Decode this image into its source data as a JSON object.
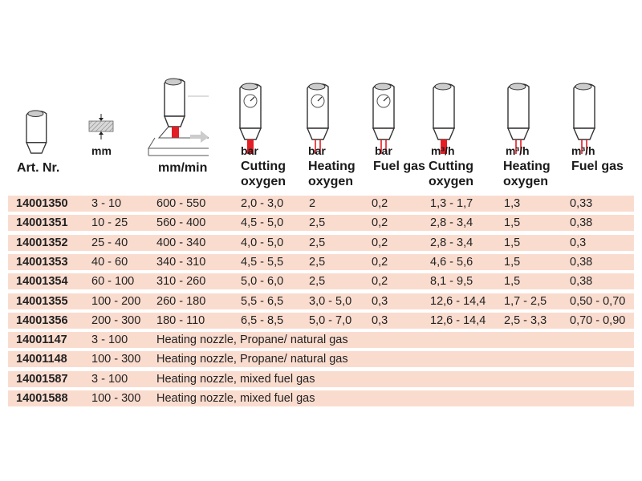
{
  "colors": {
    "row_bg": "#fadccf",
    "accent_red": "#e31e24",
    "text": "#1a1a1a"
  },
  "header": {
    "columns": [
      {
        "key": "art",
        "icon": "nozzle-icon",
        "unit": "",
        "label": "Art. Nr.",
        "label2": ""
      },
      {
        "key": "thickness",
        "icon": "material-thickness-icon",
        "unit": "mm",
        "label": "",
        "label2": ""
      },
      {
        "key": "speed",
        "icon": "cutting-speed-icon",
        "unit": "",
        "label": "mm/min",
        "label2": ""
      },
      {
        "key": "cut_o2_bar",
        "icon": "nozzle-gauge-cutting-icon",
        "unit": "bar",
        "label": "Cutting",
        "label2": "oxygen"
      },
      {
        "key": "heat_o2_bar",
        "icon": "nozzle-gauge-heating-icon",
        "unit": "bar",
        "label": "Heating",
        "label2": "oxygen"
      },
      {
        "key": "fuel_bar",
        "icon": "nozzle-gauge-fuel-icon",
        "unit": "bar",
        "label": "Fuel gas",
        "label2": ""
      },
      {
        "key": "cut_o2_flow",
        "icon": "nozzle-cutting-flow-icon",
        "unit": "m³/h",
        "label": "Cutting",
        "label2": "oxygen"
      },
      {
        "key": "heat_o2_flow",
        "icon": "nozzle-heating-flow-icon",
        "unit": "m³/h",
        "label": "Heating",
        "label2": "oxygen"
      },
      {
        "key": "fuel_flow",
        "icon": "nozzle-fuel-flow-icon",
        "unit": "m³/h",
        "label": "Fuel gas",
        "label2": ""
      }
    ]
  },
  "rows": [
    {
      "art": "14001350",
      "thickness": "3 - 10",
      "speed": "600 - 550",
      "cut_o2_bar": "2,0 - 3,0",
      "heat_o2_bar": "2",
      "fuel_bar": "0,2",
      "cut_o2_flow": "1,3 - 1,7",
      "heat_o2_flow": "1,3",
      "fuel_flow": "0,33"
    },
    {
      "art": "14001351",
      "thickness": "10 - 25",
      "speed": "560 - 400",
      "cut_o2_bar": "4,5 - 5,0",
      "heat_o2_bar": "2,5",
      "fuel_bar": "0,2",
      "cut_o2_flow": "2,8 - 3,4",
      "heat_o2_flow": "1,5",
      "fuel_flow": "0,38"
    },
    {
      "art": "14001352",
      "thickness": "25 - 40",
      "speed": "400 - 340",
      "cut_o2_bar": "4,0 - 5,0",
      "heat_o2_bar": "2,5",
      "fuel_bar": "0,2",
      "cut_o2_flow": "2,8 - 3,4",
      "heat_o2_flow": "1,5",
      "fuel_flow": "0,3"
    },
    {
      "art": "14001353",
      "thickness": "40 - 60",
      "speed": "340 - 310",
      "cut_o2_bar": "4,5 - 5,5",
      "heat_o2_bar": "2,5",
      "fuel_bar": "0,2",
      "cut_o2_flow": "4,6 - 5,6",
      "heat_o2_flow": "1,5",
      "fuel_flow": "0,38"
    },
    {
      "art": "14001354",
      "thickness": "60 - 100",
      "speed": "310 - 260",
      "cut_o2_bar": "5,0 - 6,0",
      "heat_o2_bar": "2,5",
      "fuel_bar": "0,2",
      "cut_o2_flow": "8,1 - 9,5",
      "heat_o2_flow": "1,5",
      "fuel_flow": "0,38"
    },
    {
      "art": "14001355",
      "thickness": "100 - 200",
      "speed": "260 - 180",
      "cut_o2_bar": "5,5 - 6,5",
      "heat_o2_bar": "3,0 - 5,0",
      "fuel_bar": "0,3",
      "cut_o2_flow": "12,6 - 14,4",
      "heat_o2_flow": "1,7 - 2,5",
      "fuel_flow": "0,50 - 0,70"
    },
    {
      "art": "14001356",
      "thickness": "200 - 300",
      "speed": "180 - 110",
      "cut_o2_bar": "6,5 - 8,5",
      "heat_o2_bar": "5,0 - 7,0",
      "fuel_bar": "0,3",
      "cut_o2_flow": "12,6 - 14,4",
      "heat_o2_flow": "2,5 - 3,3",
      "fuel_flow": "0,70 - 0,90"
    },
    {
      "art": "14001147",
      "thickness": "3 - 100",
      "description": "Heating nozzle, Propane/ natural gas"
    },
    {
      "art": "14001148",
      "thickness": "100 - 300",
      "description": "Heating nozzle, Propane/ natural gas"
    },
    {
      "art": "14001587",
      "thickness": "3 - 100",
      "description": "Heating nozzle, mixed fuel gas"
    },
    {
      "art": "14001588",
      "thickness": "100 - 300",
      "description": "Heating nozzle, mixed fuel gas"
    }
  ]
}
